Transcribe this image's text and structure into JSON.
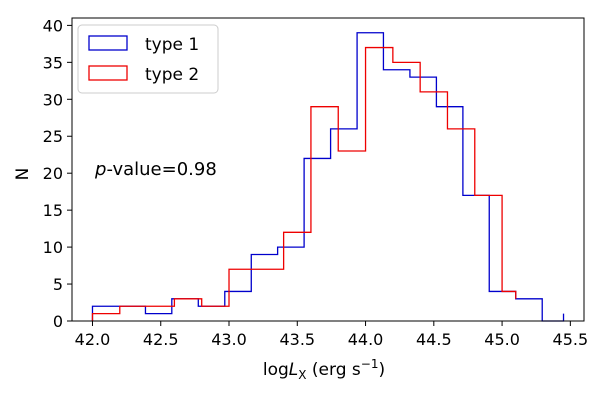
{
  "chart_data": {
    "type": "histogram-step",
    "xlabel_prefix": "log",
    "xlabel_var": "L",
    "xlabel_sub": "X",
    "xlabel_units": " (erg s",
    "xlabel_exp": "−1",
    "xlabel_close": ")",
    "ylabel": "N",
    "xlim": [
      41.85,
      45.6
    ],
    "ylim": [
      0,
      41
    ],
    "xticks": [
      42.0,
      42.5,
      43.0,
      43.5,
      44.0,
      44.5,
      45.0,
      45.5
    ],
    "xtick_labels": [
      "42.0",
      "42.5",
      "43.0",
      "43.5",
      "44.0",
      "44.5",
      "45.0",
      "45.5"
    ],
    "yticks": [
      0,
      5,
      10,
      15,
      20,
      25,
      30,
      35,
      40
    ],
    "ytick_labels": [
      "0",
      "5",
      "10",
      "15",
      "20",
      "25",
      "30",
      "35",
      "40"
    ],
    "annotation": {
      "italic": "p",
      "rest": "-value=0.98"
    },
    "legend_position": "top-left",
    "series": [
      {
        "name": "type 1",
        "color": "#0000cc",
        "edges": [
          42.0,
          42.194,
          42.388,
          42.581,
          42.775,
          42.969,
          43.163,
          43.356,
          43.55,
          43.744,
          43.938,
          44.131,
          44.325,
          44.519,
          44.713,
          44.906,
          45.1,
          45.294,
          45.45
        ],
        "counts": [
          2,
          2,
          1,
          3,
          2,
          4,
          9,
          10,
          22,
          26,
          39,
          34,
          33,
          29,
          17,
          4,
          3,
          0,
          1
        ]
      },
      {
        "name": "type 2",
        "color": "#ee0000",
        "edges": [
          42.0,
          42.2,
          42.4,
          42.6,
          42.8,
          43.0,
          43.2,
          43.4,
          43.6,
          43.8,
          44.0,
          44.2,
          44.4,
          44.6,
          44.8,
          45.0,
          45.1
        ],
        "counts": [
          1,
          2,
          2,
          3,
          2,
          7,
          7,
          12,
          29,
          23,
          37,
          35,
          31,
          26,
          17,
          4,
          3
        ]
      }
    ]
  }
}
